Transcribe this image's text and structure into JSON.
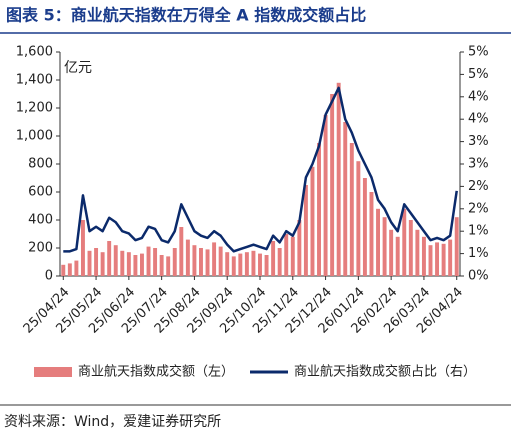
{
  "chart_data": {
    "type": "combo",
    "title": "图表 5：商业航天指数在万得全 A 指数成交额占比",
    "y_unit": "亿元",
    "source": "资料来源：Wind，爱建证券研究所",
    "legend": "bottom",
    "categories": [
      "25/04/24",
      null,
      null,
      null,
      null,
      "25/05/24",
      null,
      null,
      null,
      null,
      "25/06/24",
      null,
      null,
      null,
      null,
      "25/07/24",
      null,
      null,
      null,
      null,
      "25/08/24",
      null,
      null,
      null,
      null,
      "25/09/24",
      null,
      null,
      null,
      null,
      "25/10/24",
      null,
      null,
      null,
      null,
      "25/11/24",
      null,
      null,
      null,
      null,
      "25/12/24",
      null,
      null,
      null,
      null,
      "26/01/24",
      null,
      null,
      null,
      null,
      "26/02/24",
      null,
      null,
      null,
      null,
      "26/03/24",
      null,
      null,
      null,
      null,
      "26/04/24"
    ],
    "series": [
      {
        "name": "商业航天指数成交额（左）",
        "type": "bar",
        "color": "#e57d7d",
        "values": [
          80,
          90,
          110,
          400,
          180,
          200,
          170,
          250,
          220,
          180,
          170,
          150,
          160,
          210,
          200,
          150,
          140,
          200,
          350,
          260,
          220,
          200,
          190,
          240,
          210,
          170,
          140,
          160,
          170,
          180,
          160,
          150,
          250,
          200,
          300,
          280,
          400,
          650,
          780,
          950,
          1150,
          1300,
          1380,
          1100,
          950,
          820,
          700,
          600,
          480,
          420,
          330,
          280,
          480,
          400,
          330,
          280,
          220,
          240,
          230,
          260,
          420
        ]
      },
      {
        "name": "商业航天指数成交额占比（右）",
        "type": "line",
        "axis": "y2",
        "color": "#0b2a6b",
        "values": [
          0.55,
          0.55,
          0.6,
          1.8,
          1.0,
          1.1,
          1.0,
          1.3,
          1.2,
          1.0,
          0.95,
          0.8,
          0.85,
          1.1,
          1.05,
          0.8,
          0.75,
          1.0,
          1.6,
          1.3,
          1.0,
          0.9,
          0.85,
          1.0,
          0.9,
          0.7,
          0.55,
          0.6,
          0.65,
          0.7,
          0.65,
          0.6,
          0.9,
          0.75,
          1.0,
          0.9,
          1.2,
          2.2,
          2.5,
          2.9,
          3.6,
          3.9,
          4.2,
          3.5,
          3.2,
          2.8,
          2.5,
          2.2,
          1.7,
          1.5,
          1.2,
          1.0,
          1.6,
          1.4,
          1.2,
          1.0,
          0.8,
          0.85,
          0.8,
          0.9,
          1.9
        ]
      }
    ],
    "ylim": [
      0,
      1600
    ],
    "yticks": [
      0,
      200,
      400,
      600,
      800,
      {
        "value": 1000,
        "label": "1,000"
      },
      {
        "value": 1200,
        "label": "1,200"
      },
      {
        "value": 1400,
        "label": "1,400"
      },
      {
        "value": 1600,
        "label": "1,600"
      }
    ],
    "y2lim": [
      0,
      5
    ],
    "y2ticks": [
      {
        "value": 0,
        "label": "0%"
      },
      {
        "value": 0.5,
        "label": "1%"
      },
      {
        "value": 1,
        "label": "1%"
      },
      {
        "value": 1.5,
        "label": "2%"
      },
      {
        "value": 2,
        "label": "2%"
      },
      {
        "value": 2.5,
        "label": "3%"
      },
      {
        "value": 3,
        "label": "3%"
      },
      {
        "value": 3.5,
        "label": "4%"
      },
      {
        "value": 4,
        "label": "4%"
      },
      {
        "value": 4.5,
        "label": "5%"
      },
      {
        "value": 5,
        "label": "5%"
      }
    ]
  }
}
